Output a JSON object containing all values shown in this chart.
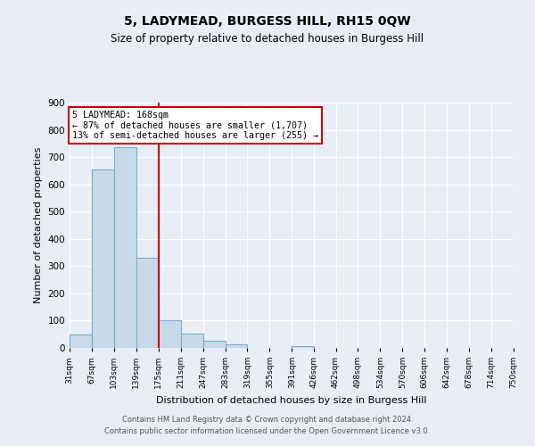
{
  "title": "5, LADYMEAD, BURGESS HILL, RH15 0QW",
  "subtitle": "Size of property relative to detached houses in Burgess Hill",
  "xlabel": "Distribution of detached houses by size in Burgess Hill",
  "ylabel": "Number of detached properties",
  "footer_line1": "Contains HM Land Registry data © Crown copyright and database right 2024.",
  "footer_line2": "Contains public sector information licensed under the Open Government Licence v3.0.",
  "bin_edges": [
    31,
    67,
    103,
    139,
    175,
    211,
    247,
    283,
    319,
    355,
    391,
    426,
    462,
    498,
    534,
    570,
    606,
    642,
    678,
    714,
    750
  ],
  "bin_labels": [
    "31sqm",
    "67sqm",
    "103sqm",
    "139sqm",
    "175sqm",
    "211sqm",
    "247sqm",
    "283sqm",
    "319sqm",
    "355sqm",
    "391sqm",
    "426sqm",
    "462sqm",
    "498sqm",
    "534sqm",
    "570sqm",
    "606sqm",
    "642sqm",
    "678sqm",
    "714sqm",
    "750sqm"
  ],
  "bar_heights": [
    50,
    655,
    737,
    330,
    103,
    52,
    25,
    13,
    0,
    0,
    8,
    0,
    0,
    0,
    0,
    0,
    0,
    0,
    0,
    0
  ],
  "bar_color": "#c8daea",
  "bar_edge_color": "#7aafc8",
  "vline_x": 175,
  "vline_color": "#cc0000",
  "annotation_title": "5 LADYMEAD: 168sqm",
  "annotation_line1": "← 87% of detached houses are smaller (1,707)",
  "annotation_line2": "13% of semi-detached houses are larger (255) →",
  "annotation_box_color": "#cc0000",
  "ylim": [
    0,
    900
  ],
  "yticks": [
    0,
    100,
    200,
    300,
    400,
    500,
    600,
    700,
    800,
    900
  ],
  "background_color": "#e8eef5",
  "plot_bg_color": "#e8eef5",
  "grid_color": "#ffffff",
  "title_fontsize": 10,
  "subtitle_fontsize": 8.5
}
